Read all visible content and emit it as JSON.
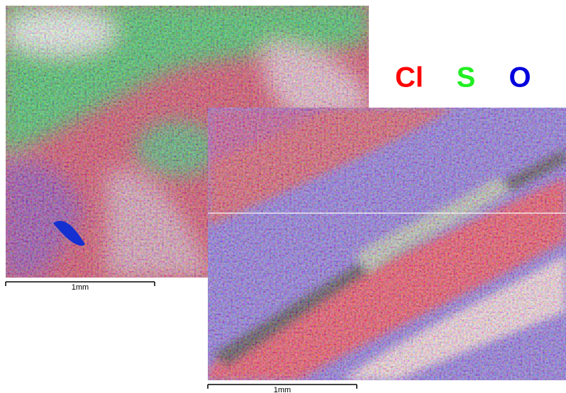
{
  "legend": {
    "items": [
      {
        "label": "Cl",
        "color": "#ff0000"
      },
      {
        "label": "S",
        "color": "#22ee22"
      },
      {
        "label": "O",
        "color": "#0000dd"
      }
    ]
  },
  "images": [
    {
      "scale_bar": "1mm"
    },
    {
      "scale_bar": "1mm"
    }
  ]
}
